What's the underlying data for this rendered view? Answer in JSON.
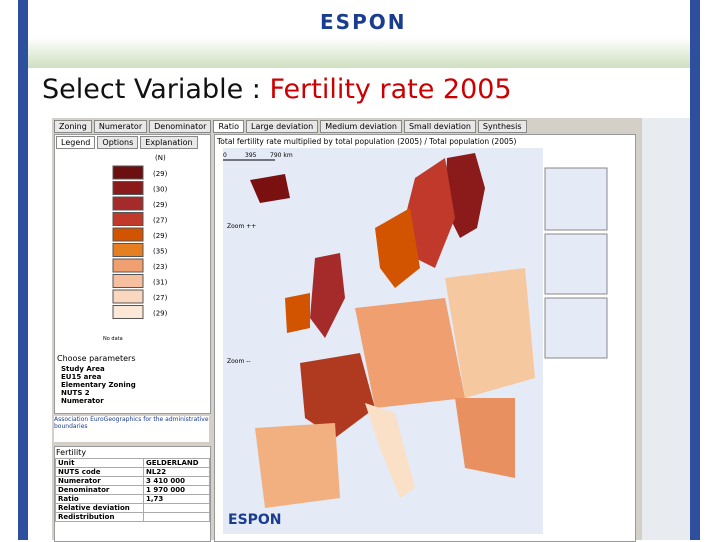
{
  "header": {
    "logo": "ESPON",
    "title_prefix": "Select Variable : ",
    "title_highlight": "Fertility rate 2005"
  },
  "tabs": [
    "Zoning",
    "Numerator",
    "Denominator",
    "Ratio",
    "Large deviation",
    "Medium deviation",
    "Small deviation",
    "Synthesis"
  ],
  "left_tabs": [
    "Legend",
    "Options",
    "Explanation"
  ],
  "legend": {
    "count_header": "(N)",
    "counts": [
      "(29)",
      "(30)",
      "(29)",
      "(27)",
      "(29)",
      "(35)",
      "(23)",
      "(31)",
      "(27)",
      "(29)"
    ],
    "nodata": "No data"
  },
  "map": {
    "title": "Total fertility rate multiplied by total population (2005) / Total population (2005)",
    "scale": [
      "0",
      "395",
      "790 km"
    ],
    "zoom_in": "Zoom ++",
    "zoom_out": "Zoom --"
  },
  "parameters": {
    "title": "Choose parameters",
    "items": [
      "Study Area",
      "EU15 area",
      "Elementary Zoning",
      "NUTS 2",
      "Numerator"
    ]
  },
  "credit": "Association EuroGeographics for the administrative boundaries",
  "info": {
    "title": "Fertility",
    "rows": [
      [
        "Unit",
        "GELDERLAND"
      ],
      [
        "NUTS code",
        "NL22"
      ],
      [
        "Numerator",
        "3 410 000"
      ],
      [
        "Denominator",
        "1 970 000"
      ],
      [
        "Ratio",
        "1,73"
      ],
      [
        "Relative deviation",
        ""
      ],
      [
        "Redistribution",
        ""
      ]
    ]
  },
  "footer_logo": "ESPON"
}
